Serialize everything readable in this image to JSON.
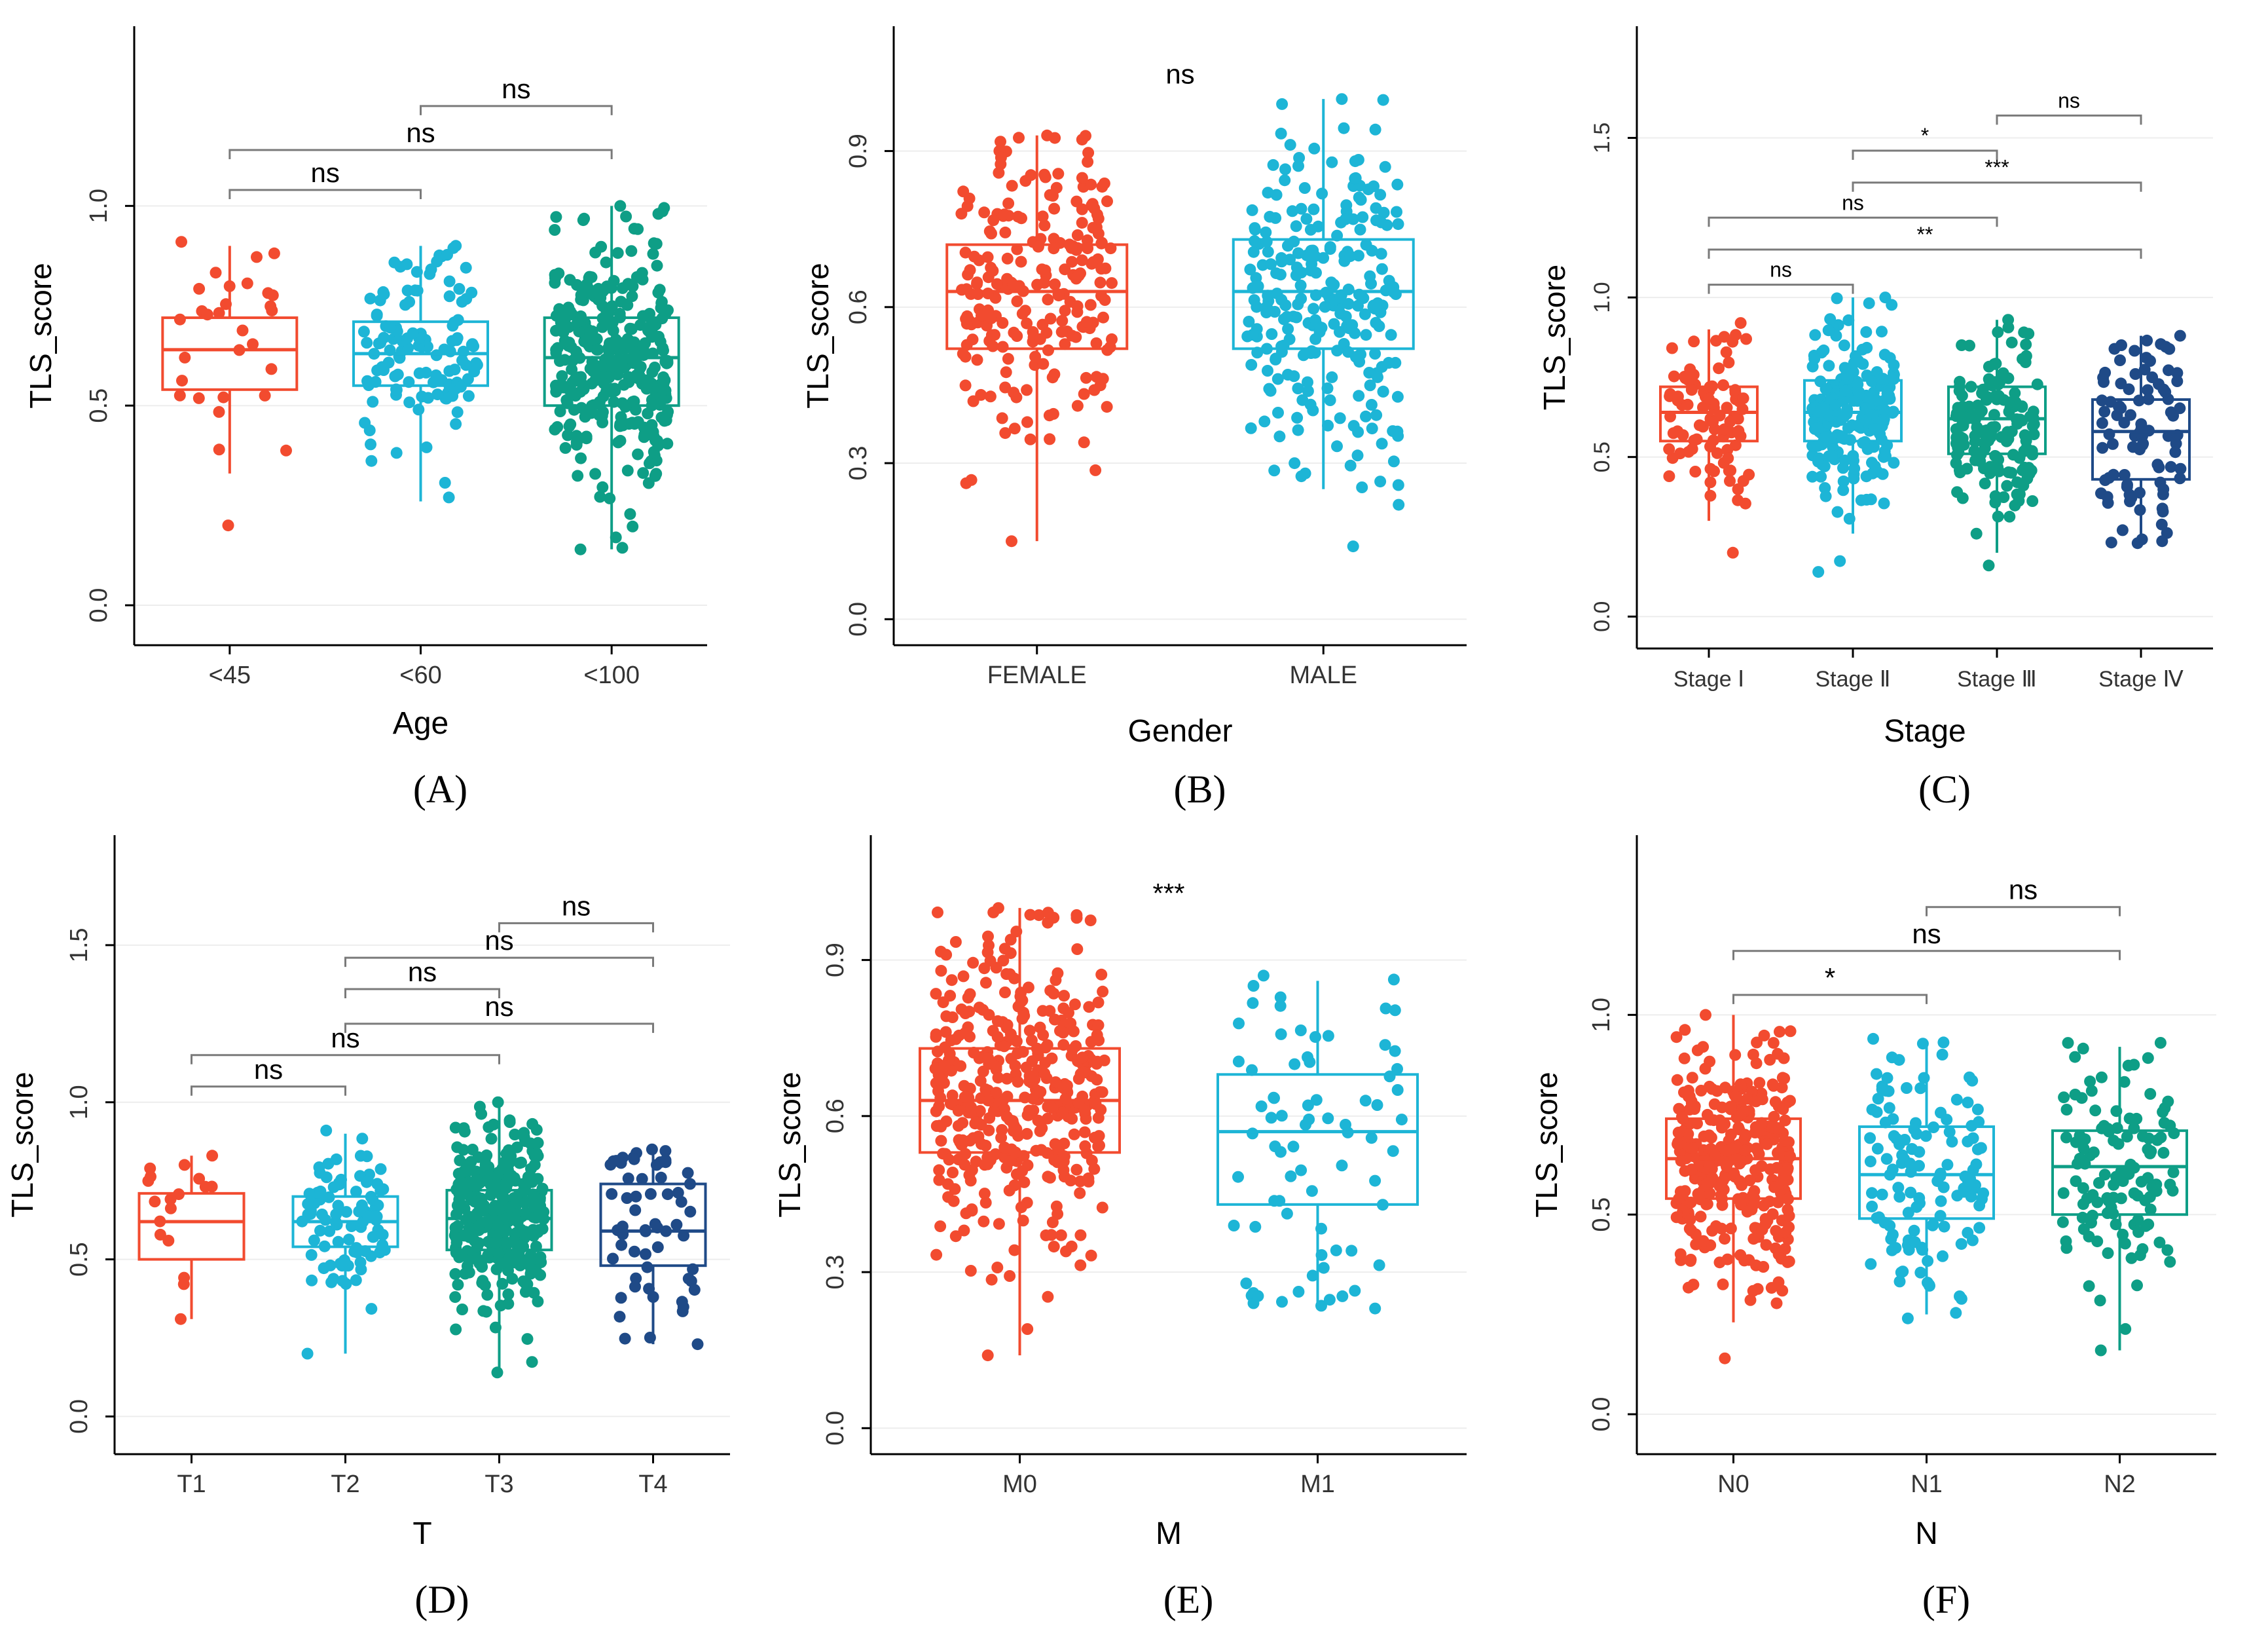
{
  "colors": {
    "red": "#F24B2F",
    "cyan": "#1DB5D6",
    "teal": "#0E9E86",
    "navy": "#1F4A87",
    "axis": "#000000",
    "bracket": "#7A7A7A",
    "grid": "#EDEDED"
  },
  "chart_data": [
    {
      "id": "A",
      "type": "box",
      "panel_label": "(A)",
      "xlabel": "Age",
      "ylabel": "TLS_score",
      "ylim": [
        -0.1,
        1.45
      ],
      "yticks": [
        {
          "value": 0.0,
          "label": "0.0"
        },
        {
          "value": 0.5,
          "label": "0.5"
        },
        {
          "value": 1.0,
          "label": "1.0"
        }
      ],
      "categories": [
        "<45",
        "<60",
        "<100"
      ],
      "colors": [
        "red",
        "cyan",
        "teal"
      ],
      "boxes": [
        {
          "min": 0.33,
          "q1": 0.54,
          "median": 0.64,
          "q3": 0.72,
          "max": 0.9,
          "n": 30,
          "dmin": 0.2,
          "dmax": 0.91
        },
        {
          "min": 0.26,
          "q1": 0.55,
          "median": 0.63,
          "q3": 0.71,
          "max": 0.9,
          "n": 120,
          "dmin": 0.27,
          "dmax": 0.9
        },
        {
          "min": 0.14,
          "q1": 0.5,
          "median": 0.62,
          "q3": 0.72,
          "max": 1.0,
          "n": 330,
          "dmin": 0.14,
          "dmax": 1.0
        }
      ],
      "comparisons": [
        {
          "from": 1,
          "to": 2,
          "label": "ns",
          "y": 1.25
        },
        {
          "from": 0,
          "to": 2,
          "label": "ns",
          "y": 1.14
        },
        {
          "from": 0,
          "to": 1,
          "label": "ns",
          "y": 1.04
        }
      ]
    },
    {
      "id": "B",
      "type": "box",
      "panel_label": "(B)",
      "xlabel": "Gender",
      "ylabel": "TLS_score",
      "ylim": [
        -0.05,
        1.14
      ],
      "yticks": [
        {
          "value": 0.0,
          "label": "0.0"
        },
        {
          "value": 0.3,
          "label": "0.3"
        },
        {
          "value": 0.6,
          "label": "0.6"
        },
        {
          "value": 0.9,
          "label": "0.9"
        }
      ],
      "categories": [
        "FEMALE",
        "MALE"
      ],
      "colors": [
        "red",
        "cyan"
      ],
      "boxes": [
        {
          "min": 0.15,
          "q1": 0.52,
          "median": 0.63,
          "q3": 0.72,
          "max": 0.93,
          "n": 230,
          "dmin": 0.15,
          "dmax": 0.93
        },
        {
          "min": 0.25,
          "q1": 0.52,
          "median": 0.63,
          "q3": 0.73,
          "max": 1.0,
          "n": 260,
          "dmin": 0.14,
          "dmax": 1.0
        }
      ],
      "overall_label": "ns",
      "overall_y": 1.03
    },
    {
      "id": "C",
      "type": "box",
      "panel_label": "(C)",
      "xlabel": "Stage",
      "ylabel": "TLS_score",
      "ylim": [
        -0.1,
        1.85
      ],
      "yticks": [
        {
          "value": 0.0,
          "label": "0.0"
        },
        {
          "value": 0.5,
          "label": "0.5"
        },
        {
          "value": 1.0,
          "label": "1.0"
        },
        {
          "value": 1.5,
          "label": "1.5"
        }
      ],
      "categories": [
        "Stage Ⅰ",
        "Stage Ⅱ",
        "Stage Ⅲ",
        "Stage Ⅳ"
      ],
      "colors": [
        "red",
        "cyan",
        "teal",
        "navy"
      ],
      "boxes": [
        {
          "min": 0.3,
          "q1": 0.55,
          "median": 0.64,
          "q3": 0.72,
          "max": 0.9,
          "n": 90,
          "dmin": 0.2,
          "dmax": 0.92
        },
        {
          "min": 0.26,
          "q1": 0.55,
          "median": 0.64,
          "q3": 0.74,
          "max": 1.0,
          "n": 220,
          "dmin": 0.14,
          "dmax": 1.0
        },
        {
          "min": 0.2,
          "q1": 0.51,
          "median": 0.62,
          "q3": 0.72,
          "max": 0.93,
          "n": 160,
          "dmin": 0.16,
          "dmax": 0.93
        },
        {
          "min": 0.23,
          "q1": 0.43,
          "median": 0.58,
          "q3": 0.68,
          "max": 0.88,
          "n": 90,
          "dmin": 0.23,
          "dmax": 0.88
        }
      ],
      "comparisons": [
        {
          "from": 2,
          "to": 3,
          "label": "ns",
          "y": 1.57
        },
        {
          "from": 1,
          "to": 2,
          "label": "*",
          "y": 1.46
        },
        {
          "from": 1,
          "to": 3,
          "label": "***",
          "y": 1.36
        },
        {
          "from": 0,
          "to": 2,
          "label": "ns",
          "y": 1.25
        },
        {
          "from": 0,
          "to": 3,
          "label": "**",
          "y": 1.15
        },
        {
          "from": 0,
          "to": 1,
          "label": "ns",
          "y": 1.04
        }
      ]
    },
    {
      "id": "D",
      "type": "box",
      "panel_label": "(D)",
      "xlabel": "T",
      "ylabel": "TLS_score",
      "ylim": [
        -0.12,
        1.85
      ],
      "yticks": [
        {
          "value": 0.0,
          "label": "0.0"
        },
        {
          "value": 0.5,
          "label": "0.5"
        },
        {
          "value": 1.0,
          "label": "1.0"
        },
        {
          "value": 1.5,
          "label": "1.5"
        }
      ],
      "categories": [
        "T1",
        "T2",
        "T3",
        "T4"
      ],
      "colors": [
        "red",
        "cyan",
        "teal",
        "navy"
      ],
      "boxes": [
        {
          "min": 0.31,
          "q1": 0.5,
          "median": 0.62,
          "q3": 0.71,
          "max": 0.83,
          "n": 18,
          "dmin": 0.31,
          "dmax": 0.83
        },
        {
          "min": 0.2,
          "q1": 0.54,
          "median": 0.62,
          "q3": 0.7,
          "max": 0.9,
          "n": 90,
          "dmin": 0.2,
          "dmax": 0.91
        },
        {
          "min": 0.14,
          "q1": 0.53,
          "median": 0.63,
          "q3": 0.72,
          "max": 1.0,
          "n": 320,
          "dmin": 0.14,
          "dmax": 1.0
        },
        {
          "min": 0.23,
          "q1": 0.48,
          "median": 0.59,
          "q3": 0.74,
          "max": 0.85,
          "n": 60,
          "dmin": 0.23,
          "dmax": 0.85
        }
      ],
      "comparisons": [
        {
          "from": 2,
          "to": 3,
          "label": "ns",
          "y": 1.57
        },
        {
          "from": 1,
          "to": 3,
          "label": "ns",
          "y": 1.46
        },
        {
          "from": 1,
          "to": 2,
          "label": "ns",
          "y": 1.36
        },
        {
          "from": 1,
          "to": 3,
          "label": "ns",
          "y": 1.25
        },
        {
          "from": 0,
          "to": 2,
          "label": "ns",
          "y": 1.15
        },
        {
          "from": 0,
          "to": 1,
          "label": "ns",
          "y": 1.05
        }
      ]
    },
    {
      "id": "E",
      "type": "box",
      "panel_label": "(E)",
      "xlabel": "M",
      "ylabel": "TLS_score",
      "ylim": [
        -0.05,
        1.14
      ],
      "yticks": [
        {
          "value": 0.0,
          "label": "0.0"
        },
        {
          "value": 0.3,
          "label": "0.3"
        },
        {
          "value": 0.6,
          "label": "0.6"
        },
        {
          "value": 0.9,
          "label": "0.9"
        }
      ],
      "categories": [
        "M0",
        "M1"
      ],
      "colors": [
        "red",
        "cyan"
      ],
      "boxes": [
        {
          "min": 0.14,
          "q1": 0.53,
          "median": 0.63,
          "q3": 0.73,
          "max": 1.0,
          "n": 400,
          "dmin": 0.14,
          "dmax": 1.0
        },
        {
          "min": 0.23,
          "q1": 0.43,
          "median": 0.57,
          "q3": 0.68,
          "max": 0.86,
          "n": 75,
          "dmin": 0.23,
          "dmax": 0.87
        }
      ],
      "overall_label": "***",
      "overall_y": 1.01
    },
    {
      "id": "F",
      "type": "box",
      "panel_label": "(F)",
      "xlabel": "N",
      "ylabel": "TLS_score",
      "ylim": [
        -0.1,
        1.45
      ],
      "yticks": [
        {
          "value": 0.0,
          "label": "0.0"
        },
        {
          "value": 0.5,
          "label": "0.5"
        },
        {
          "value": 1.0,
          "label": "1.0"
        }
      ],
      "categories": [
        "N0",
        "N1",
        "N2"
      ],
      "colors": [
        "red",
        "cyan",
        "teal"
      ],
      "boxes": [
        {
          "min": 0.23,
          "q1": 0.54,
          "median": 0.64,
          "q3": 0.74,
          "max": 1.0,
          "n": 320,
          "dmin": 0.14,
          "dmax": 1.0
        },
        {
          "min": 0.25,
          "q1": 0.49,
          "median": 0.6,
          "q3": 0.72,
          "max": 0.93,
          "n": 130,
          "dmin": 0.24,
          "dmax": 0.94
        },
        {
          "min": 0.16,
          "q1": 0.5,
          "median": 0.62,
          "q3": 0.71,
          "max": 0.92,
          "n": 120,
          "dmin": 0.16,
          "dmax": 0.93
        }
      ],
      "comparisons": [
        {
          "from": 1,
          "to": 2,
          "label": "ns",
          "y": 1.27
        },
        {
          "from": 0,
          "to": 2,
          "label": "ns",
          "y": 1.16
        },
        {
          "from": 0,
          "to": 1,
          "label": "*",
          "y": 1.05
        }
      ]
    }
  ]
}
